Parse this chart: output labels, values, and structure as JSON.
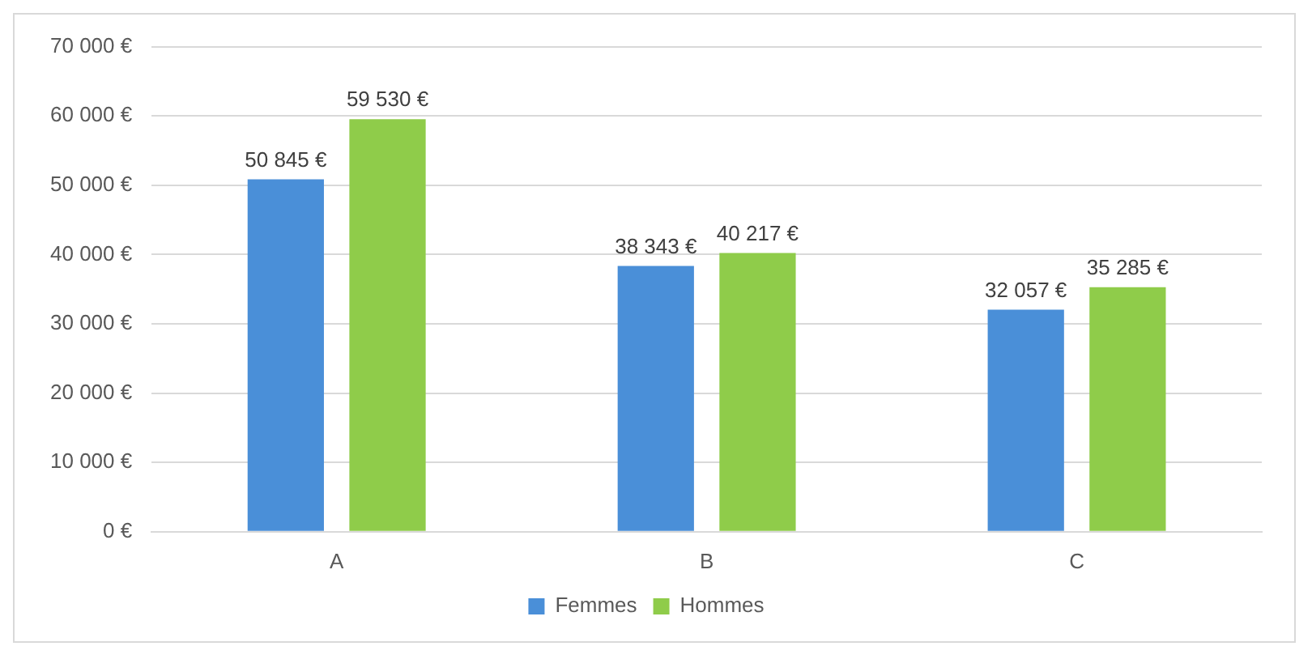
{
  "chart_data": {
    "type": "bar",
    "categories": [
      "A",
      "B",
      "C"
    ],
    "series": [
      {
        "name": "Femmes",
        "color": "#4a8fd8",
        "values": [
          50845,
          38343,
          32057
        ],
        "value_labels": [
          "50 845 €",
          "38 343 €",
          "32 057 €"
        ]
      },
      {
        "name": "Hommes",
        "color": "#8fcc4a",
        "values": [
          59530,
          40217,
          35285
        ],
        "value_labels": [
          "59 530 €",
          "40 217 €",
          "35 285 €"
        ]
      }
    ],
    "ylim": [
      0,
      70000
    ],
    "yticks": [
      {
        "value": 0,
        "label": "0 €"
      },
      {
        "value": 10000,
        "label": "10 000 €"
      },
      {
        "value": 20000,
        "label": "20 000 €"
      },
      {
        "value": 30000,
        "label": "30 000 €"
      },
      {
        "value": 40000,
        "label": "40 000 €"
      },
      {
        "value": 50000,
        "label": "50 000 €"
      },
      {
        "value": 60000,
        "label": "60 000 €"
      },
      {
        "value": 70000,
        "label": "70 000 €"
      }
    ],
    "grid": "y",
    "legend": "bottom"
  }
}
